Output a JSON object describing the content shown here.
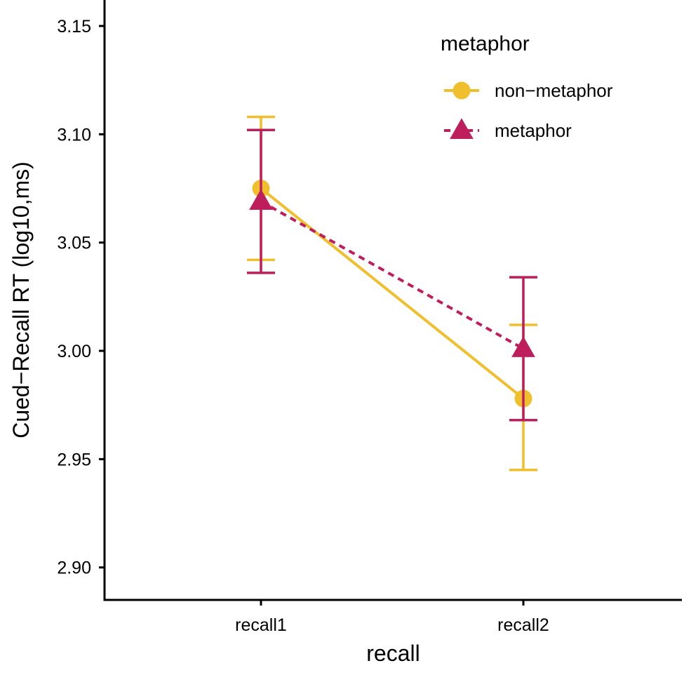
{
  "chart_data": {
    "type": "line",
    "xlabel": "recall",
    "ylabel": "Cued−Recall RT (log10,ms)",
    "categories": [
      "recall1",
      "recall2"
    ],
    "ylim": [
      2.885,
      3.162
    ],
    "yticks": [
      2.9,
      2.95,
      3.0,
      3.05,
      3.1,
      3.15
    ],
    "ytick_labels": [
      "2.90",
      "2.95",
      "3.00",
      "3.05",
      "3.10",
      "3.15"
    ],
    "grid": false,
    "legend": {
      "title": "metaphor",
      "position": "top-right"
    },
    "series": [
      {
        "name": "non−metaphor",
        "color": "#EFBF2E",
        "marker": "circle",
        "linestyle": "solid",
        "values": [
          3.075,
          2.978
        ],
        "error_low": [
          3.042,
          2.945
        ],
        "error_high": [
          3.108,
          3.012
        ]
      },
      {
        "name": "metaphor",
        "color": "#BE1E5C",
        "marker": "triangle",
        "linestyle": "dashed",
        "values": [
          3.069,
          3.001
        ],
        "error_low": [
          3.036,
          2.968
        ],
        "error_high": [
          3.102,
          3.034
        ]
      }
    ]
  }
}
